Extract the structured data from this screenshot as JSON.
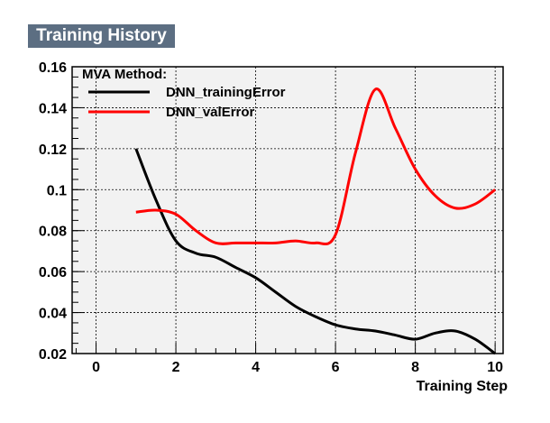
{
  "header": {
    "title": "Training History"
  },
  "chart_data": {
    "type": "line",
    "title": "Training History",
    "xlabel": "Training Step",
    "ylabel": "",
    "xlim": [
      -0.6,
      10.2
    ],
    "ylim": [
      0.02,
      0.16
    ],
    "xticks": [
      0,
      2,
      4,
      6,
      8,
      10
    ],
    "yticks": [
      0.02,
      0.04,
      0.06,
      0.08,
      0.1,
      0.12,
      0.14,
      0.16
    ],
    "ytick_labels": [
      "0.02",
      "0.04",
      "0.06",
      "0.08",
      "0.1",
      "0.12",
      "0.14",
      "0.16"
    ],
    "grid": true,
    "legend": {
      "title": "MVA Method:",
      "placement": "top-left"
    },
    "series": [
      {
        "name": "DNN_trainingError",
        "color": "#000000",
        "x": [
          1.0,
          1.5,
          2.0,
          2.5,
          3.0,
          3.5,
          4.0,
          4.5,
          5.0,
          5.5,
          6.0,
          6.5,
          7.0,
          7.5,
          8.0,
          8.5,
          9.0,
          9.5,
          10.0
        ],
        "y": [
          0.12,
          0.095,
          0.075,
          0.069,
          0.067,
          0.062,
          0.057,
          0.05,
          0.043,
          0.038,
          0.034,
          0.032,
          0.031,
          0.029,
          0.027,
          0.03,
          0.031,
          0.027,
          0.02
        ]
      },
      {
        "name": "DNN_valError",
        "color": "#ff0000",
        "x": [
          1.0,
          1.5,
          2.0,
          2.5,
          3.0,
          3.5,
          4.0,
          4.5,
          5.0,
          5.5,
          6.0,
          6.5,
          7.0,
          7.5,
          8.0,
          8.5,
          9.0,
          9.5,
          10.0
        ],
        "y": [
          0.089,
          0.09,
          0.088,
          0.08,
          0.074,
          0.074,
          0.074,
          0.074,
          0.075,
          0.074,
          0.078,
          0.118,
          0.149,
          0.13,
          0.11,
          0.097,
          0.091,
          0.093,
          0.1
        ]
      }
    ]
  }
}
